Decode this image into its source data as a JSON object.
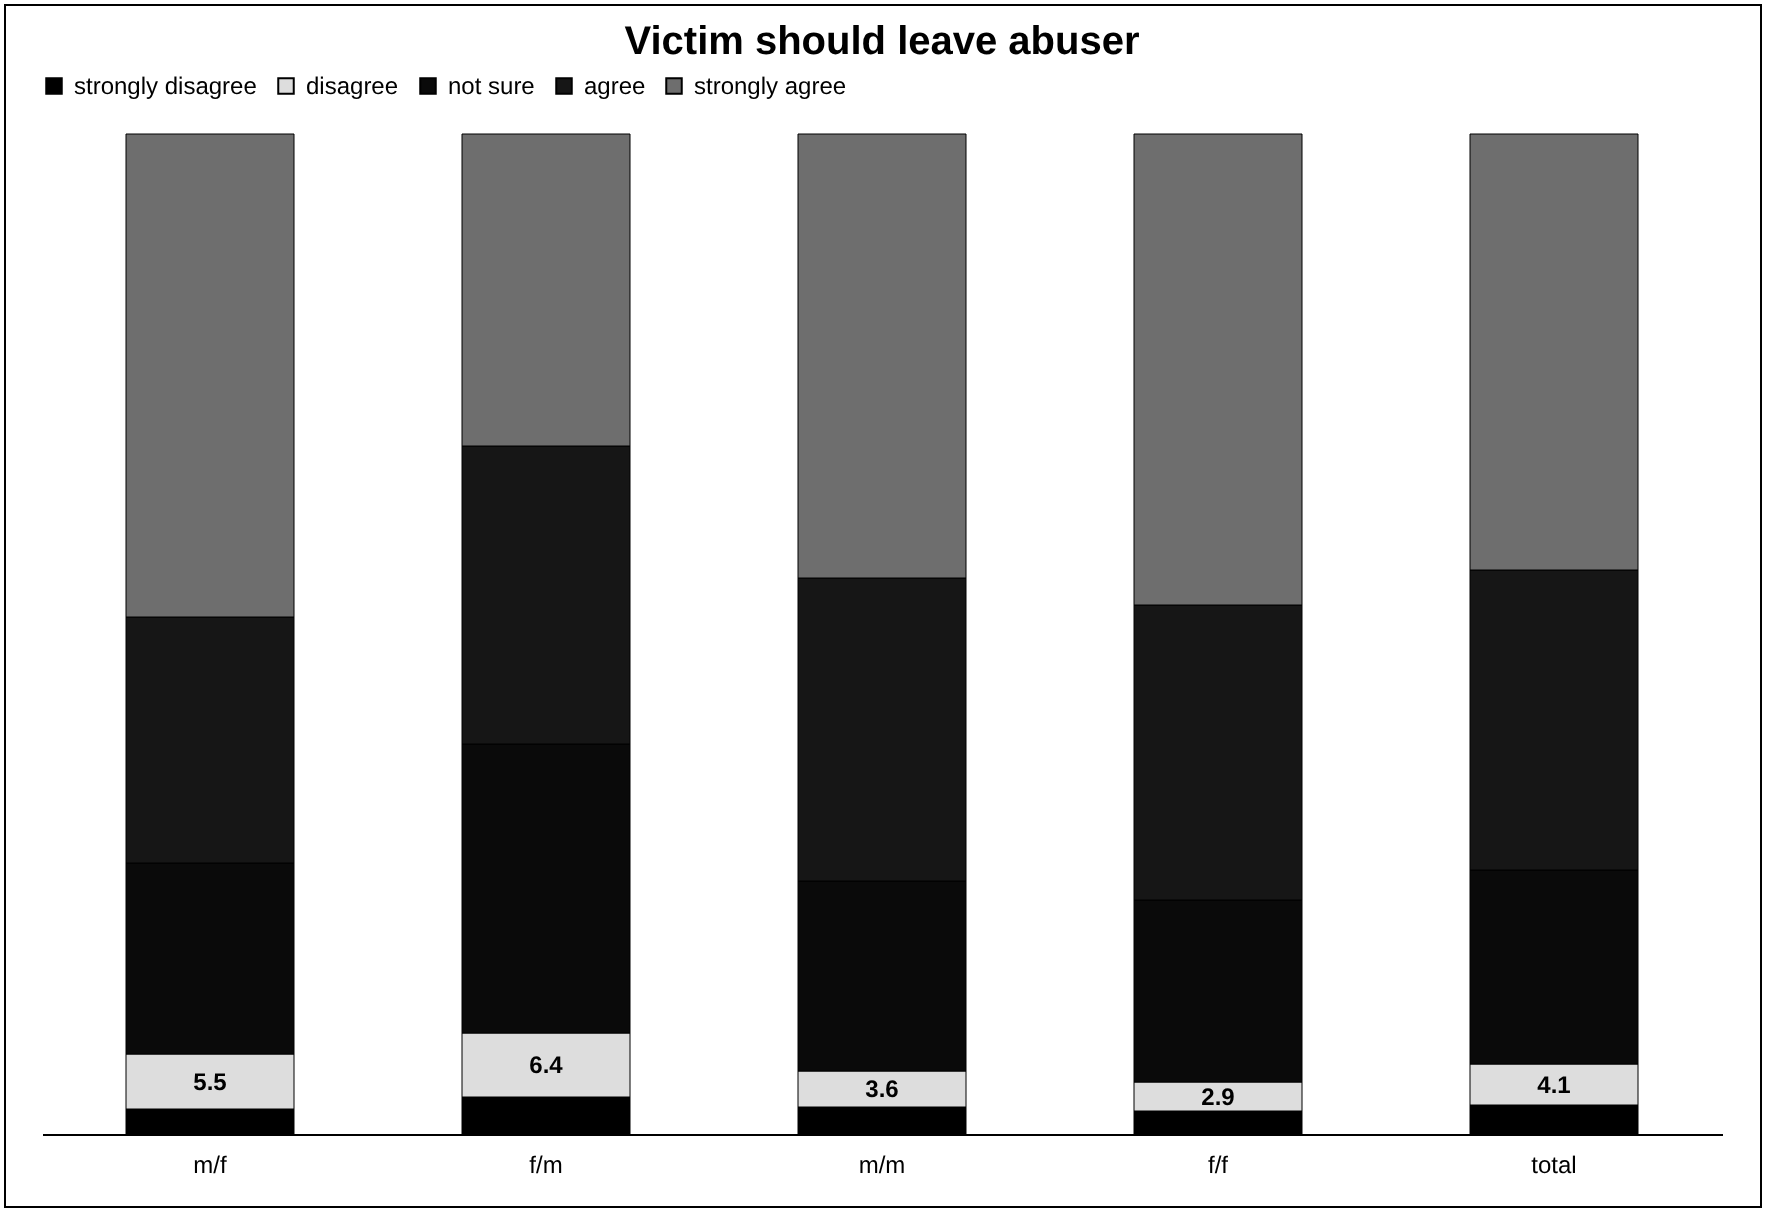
{
  "chart_data": {
    "type": "bar",
    "title": "Victim should leave abuser",
    "categories": [
      "m/f",
      "f/m",
      "m/m",
      "f/f",
      "total"
    ],
    "stacked": true,
    "ylim": [
      0,
      100
    ],
    "tick_labels": "x",
    "legend": "top",
    "series": [
      {
        "name": "strongly disagree",
        "color": "#000000",
        "values": [
          2.5,
          3.7,
          2.7,
          2.3,
          2.9
        ]
      },
      {
        "name": "disagree",
        "color": "#dddddd",
        "values": [
          5.5,
          6.4,
          3.6,
          2.9,
          4.1
        ],
        "value_labels": [
          "5.5",
          "6.4",
          "3.6",
          "2.9",
          "4.1"
        ]
      },
      {
        "name": "not sure",
        "color": "#0a0a0a",
        "values": [
          19.1,
          28.9,
          19.0,
          18.2,
          19.4
        ]
      },
      {
        "name": "agree",
        "color": "#161616",
        "values": [
          24.6,
          29.8,
          30.3,
          29.5,
          30.0
        ]
      },
      {
        "name": "strongly agree",
        "color": "#6e6e6e",
        "values": [
          48.3,
          31.2,
          44.4,
          47.1,
          43.6
        ]
      }
    ]
  }
}
